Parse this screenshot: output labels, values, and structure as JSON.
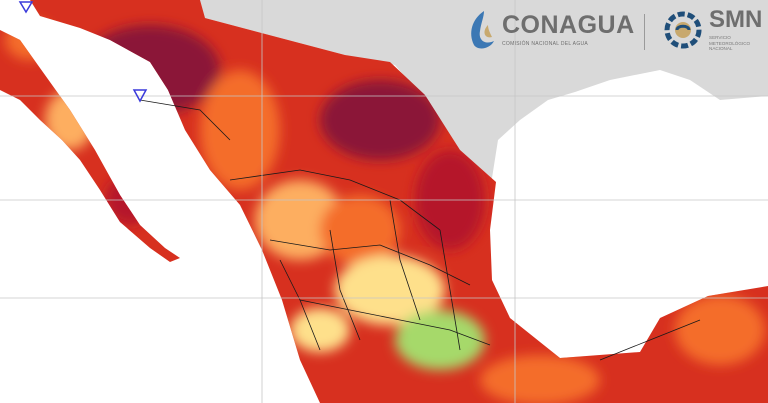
{
  "logos": {
    "conagua": {
      "name": "CONAGUA",
      "subtitle": "COMISIÓN NACIONAL DEL AGUA"
    },
    "smn": {
      "name": "SMN",
      "subtitle_lines": [
        "SERVICIO",
        "METEOROLÓGICO",
        "NACIONAL"
      ]
    }
  },
  "colors": {
    "ocean": "#ffffff",
    "land_outside": "#d9d9d9",
    "graticule": "#c6c6c6",
    "state_borders": "#1a1a1a",
    "hot_maroon": "#8b1538",
    "hot_crimson": "#b5172c",
    "hot_red": "#d7301f",
    "warm_orange": "#f46d2b",
    "warm_light": "#fdae61",
    "mild_yellow": "#fee08b",
    "cool_green": "#a6d96a",
    "marker_color": "#3a3adb"
  },
  "markers": [
    "triangle",
    "triangle"
  ]
}
